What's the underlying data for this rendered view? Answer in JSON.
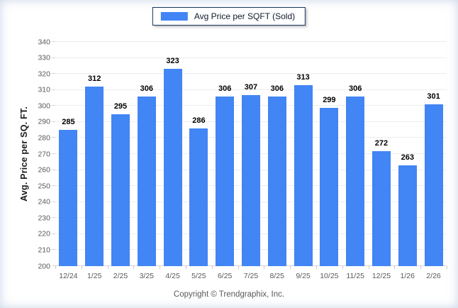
{
  "legend": {
    "label": "Avg Price per SQFT (Sold)"
  },
  "y_axis_title": "Avg. Price per SQ. FT.",
  "footer": "Copyright © Trendgraphix, Inc.",
  "colors": {
    "bar": "#4285F4",
    "legend_border": "#17375E",
    "gridline": "#EDEDED",
    "axis_line": "#D6D6D6",
    "axis_label": "#595959",
    "value_label": "#000000"
  },
  "chart_data": {
    "type": "bar",
    "title": "",
    "series_name": "Avg Price per SQFT (Sold)",
    "categories": [
      "12/24",
      "1/25",
      "2/25",
      "3/25",
      "4/25",
      "5/25",
      "6/25",
      "7/25",
      "8/25",
      "9/25",
      "10/25",
      "11/25",
      "12/25",
      "1/26",
      "2/26"
    ],
    "values": [
      285,
      312,
      295,
      306,
      323,
      286,
      306,
      307,
      306,
      313,
      299,
      306,
      272,
      263,
      301
    ],
    "xlabel": "",
    "ylabel": "Avg. Price per SQ. FT.",
    "ylim": [
      200,
      340
    ],
    "ytick_step": 10,
    "grid": true,
    "data_labels": true,
    "legend_position": "top"
  }
}
